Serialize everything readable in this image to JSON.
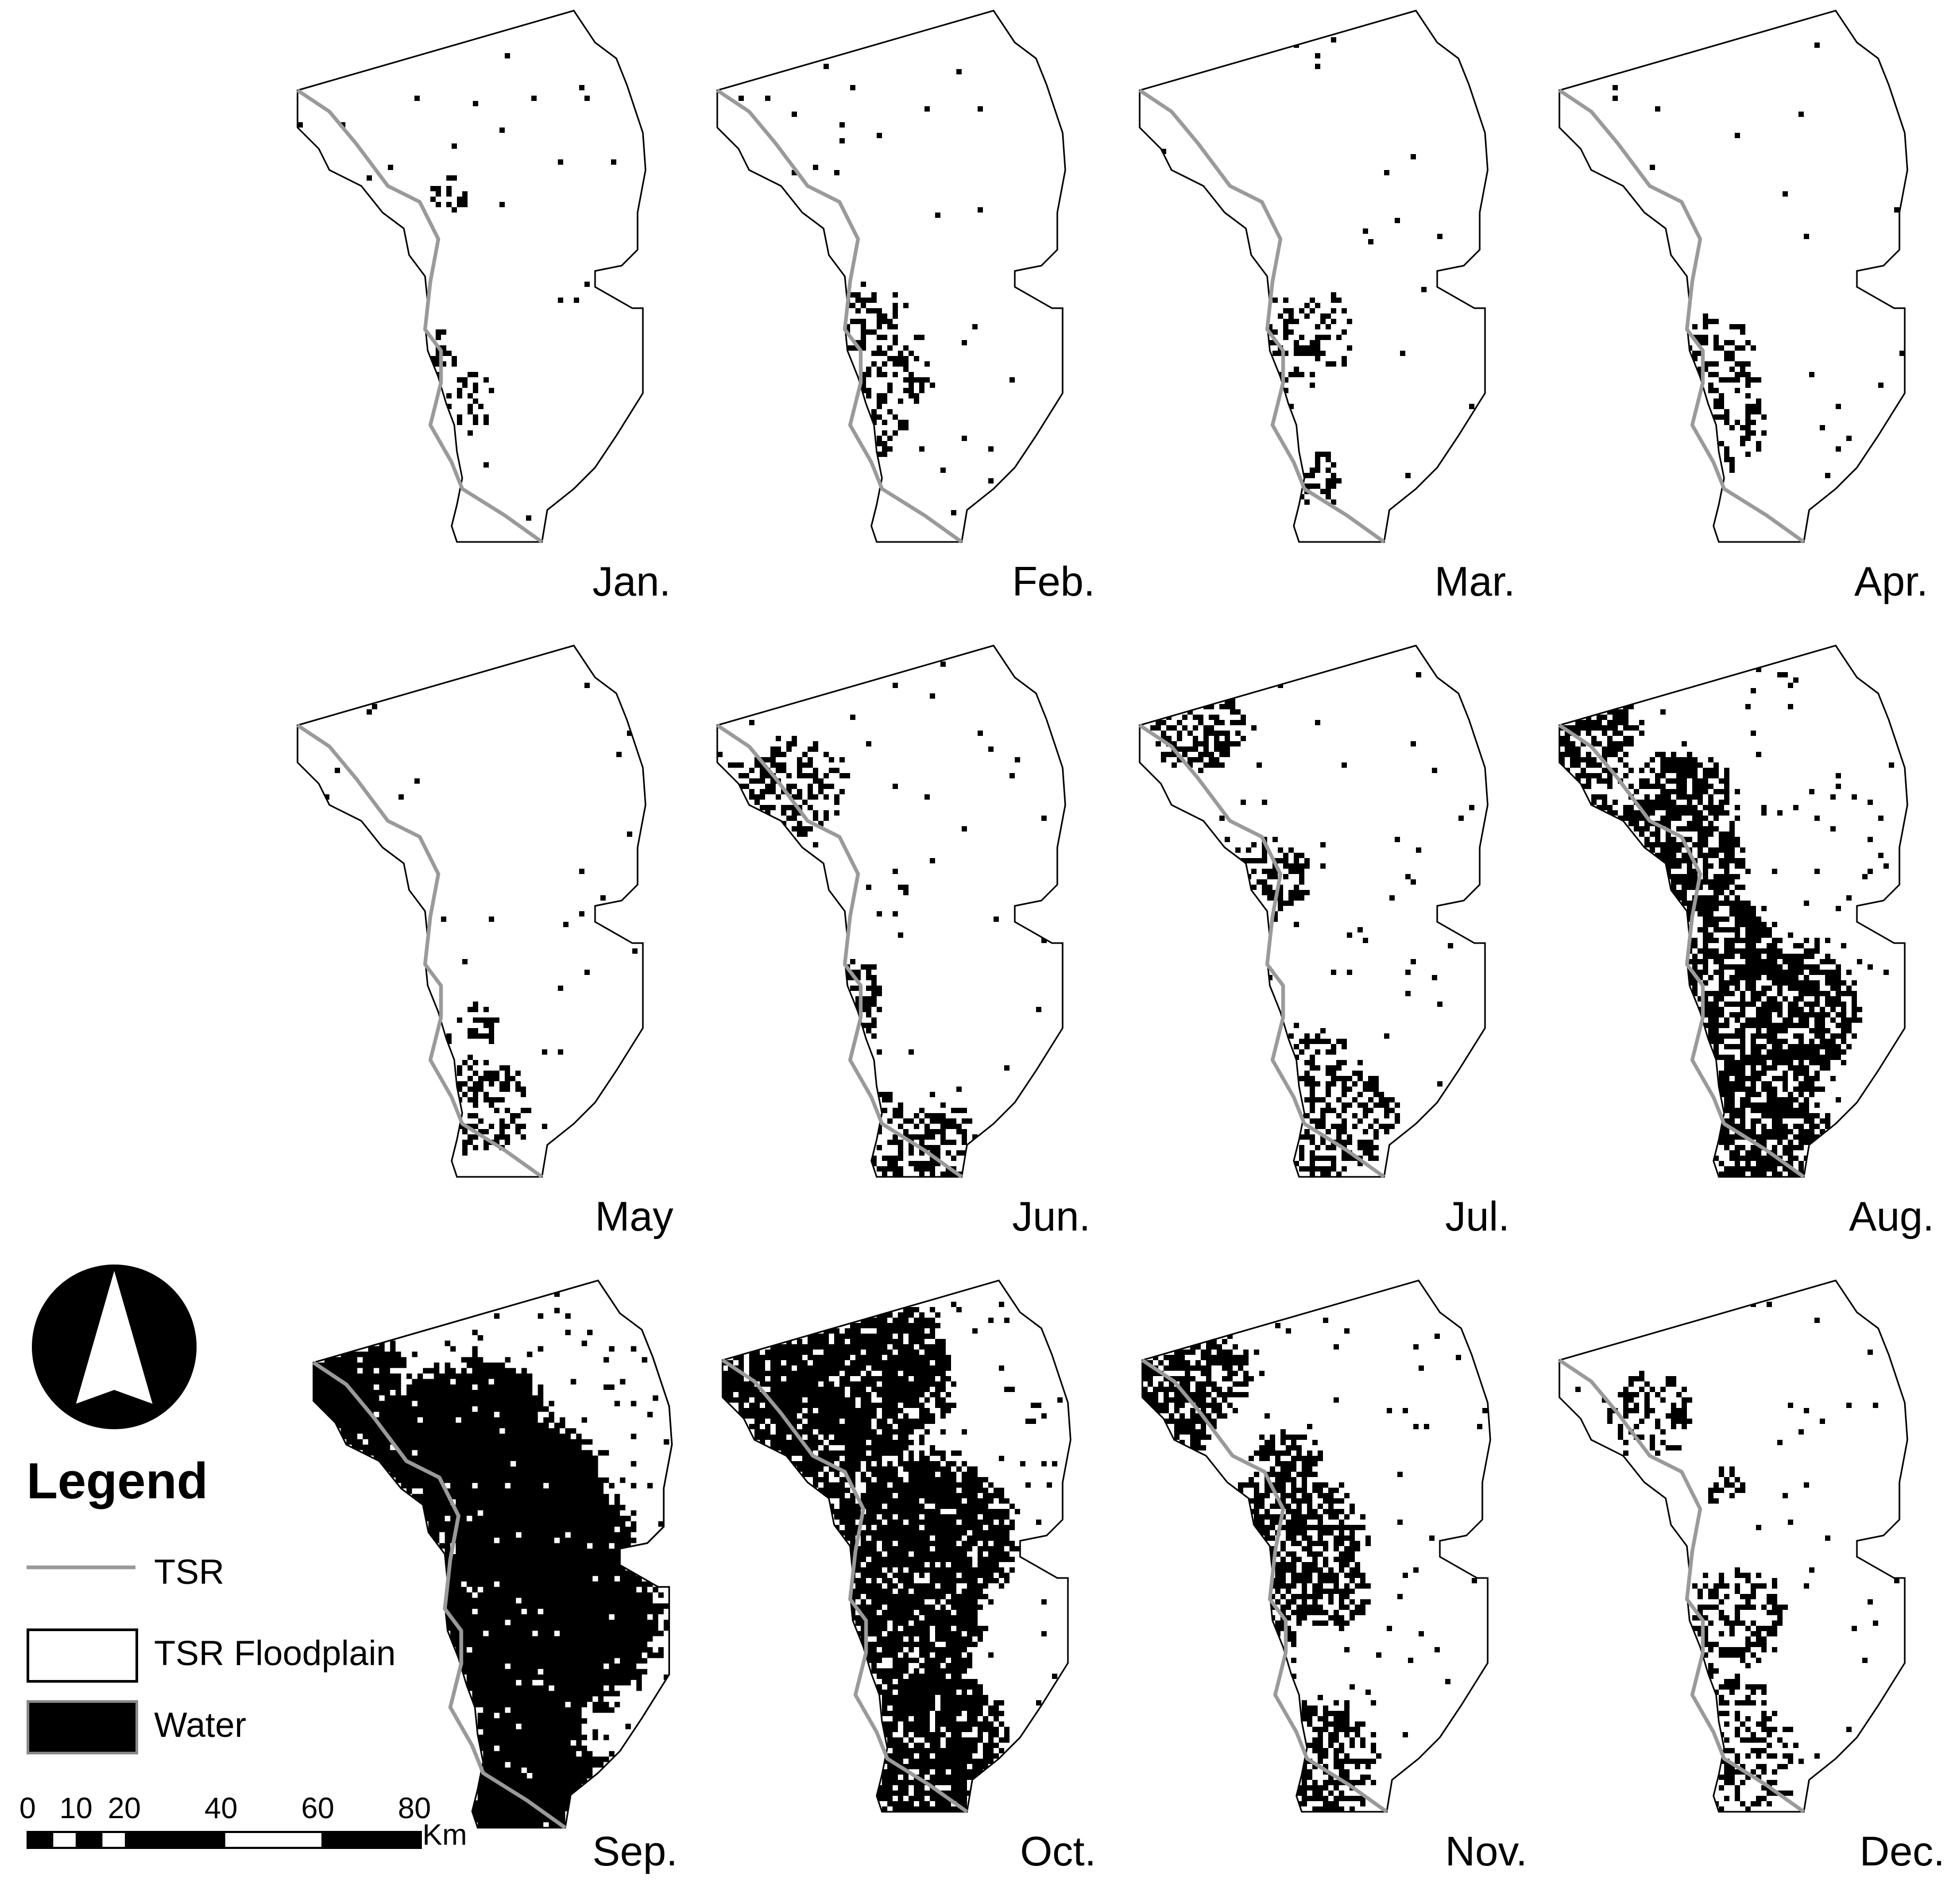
{
  "panels": [
    {
      "label": "Jan.",
      "water_level": 0.03
    },
    {
      "label": "Feb.",
      "water_level": 0.02
    },
    {
      "label": "Mar.",
      "water_level": 0.01
    },
    {
      "label": "Apr.",
      "water_level": 0.03
    },
    {
      "label": "May",
      "water_level": 0.05
    },
    {
      "label": "Jun.",
      "water_level": 0.14
    },
    {
      "label": "Jul.",
      "water_level": 0.16
    },
    {
      "label": "Aug.",
      "water_level": 0.4
    },
    {
      "label": "Sep.",
      "water_level": 0.68
    },
    {
      "label": "Oct.",
      "water_level": 0.55
    },
    {
      "label": "Nov.",
      "water_level": 0.3
    },
    {
      "label": "Dec.",
      "water_level": 0.1
    }
  ],
  "legend": {
    "title": "Legend",
    "items": [
      {
        "label": "TSR",
        "kind": "line"
      },
      {
        "label": "TSR Floodplain",
        "kind": "box"
      },
      {
        "label": "Water",
        "kind": "fill"
      }
    ]
  },
  "scale_bar": {
    "ticks": [
      "0",
      "10",
      "20",
      "40",
      "60",
      "80"
    ],
    "tick_values": [
      0,
      10,
      20,
      40,
      60,
      80
    ],
    "unit": "Km"
  },
  "colors": {
    "water": "#000000",
    "river": "#9a9a9a",
    "floodplain": "#ffffff",
    "outline": "#000000"
  },
  "north_arrow": {
    "icon": "north-arrow-icon"
  }
}
